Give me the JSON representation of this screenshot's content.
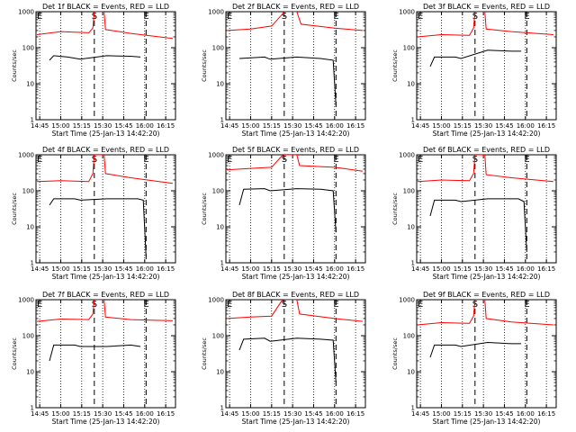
{
  "figure": {
    "x_ticks": [
      "14:45",
      "15:00",
      "15:15",
      "15:30",
      "15:45",
      "16:00",
      "16:15"
    ],
    "y_ticks": [
      "1",
      "10",
      "100",
      "1000"
    ],
    "ylabel": "Counts/sec",
    "xlabel": "Start Time (25-Jan-13 14:42:20)",
    "marker_labels": [
      "E",
      "S",
      "E"
    ],
    "colors": {
      "events": "#000000",
      "lld": "#ff0000",
      "axes": "#000000",
      "background": "#ffffff"
    }
  },
  "chart_data": [
    {
      "type": "line",
      "title": "Det 1f BLACK = Events, RED = LLD",
      "xlim": [
        "14:42:20",
        "16:22:00"
      ],
      "ylim": [
        1,
        1000
      ],
      "yscale": "log",
      "markers": [
        {
          "label": "E",
          "time": "14:42:20"
        },
        {
          "label": "S",
          "time": "15:24:00"
        },
        {
          "label": "E",
          "time": "16:01:00"
        }
      ],
      "series": [
        {
          "name": "BLACK = Events",
          "color": "black",
          "points": [
            [
              "14:52",
              45
            ],
            [
              "14:55",
              60
            ],
            [
              "15:05",
              55
            ],
            [
              "15:14",
              48
            ],
            [
              "15:33",
              60
            ],
            [
              "15:50",
              58
            ],
            [
              "15:57",
              55
            ]
          ]
        },
        {
          "name": "RED = LLD",
          "color": "red",
          "points": [
            [
              "14:43",
              230
            ],
            [
              "15:00",
              280
            ],
            [
              "15:20",
              260
            ],
            [
              "15:23",
              350
            ],
            [
              "15:24",
              1000
            ],
            [
              "15:31",
              1000
            ],
            [
              "15:32",
              320
            ],
            [
              "15:50",
              250
            ],
            [
              "16:20",
              180
            ]
          ]
        }
      ]
    },
    {
      "type": "line",
      "title": "Det 2f BLACK = Events, RED = LLD",
      "xlim": [
        "14:42:20",
        "16:22:00"
      ],
      "ylim": [
        1,
        1000
      ],
      "yscale": "log",
      "markers": [
        {
          "label": "E",
          "time": "14:42:20"
        },
        {
          "label": "S",
          "time": "15:24:00"
        },
        {
          "label": "E",
          "time": "16:01:00"
        }
      ],
      "series": [
        {
          "name": "BLACK = Events",
          "color": "black",
          "points": [
            [
              "14:52",
              50
            ],
            [
              "15:10",
              55
            ],
            [
              "15:14",
              48
            ],
            [
              "15:33",
              55
            ],
            [
              "15:50",
              50
            ],
            [
              "15:59",
              45
            ],
            [
              "16:01",
              2.5
            ]
          ]
        },
        {
          "name": "RED = LLD",
          "color": "red",
          "points": [
            [
              "14:43",
              300
            ],
            [
              "15:00",
              330
            ],
            [
              "15:15",
              400
            ],
            [
              "15:22",
              800
            ],
            [
              "15:24",
              1000
            ],
            [
              "15:33",
              1000
            ],
            [
              "15:36",
              450
            ],
            [
              "16:00",
              350
            ],
            [
              "16:20",
              300
            ]
          ]
        }
      ]
    },
    {
      "type": "line",
      "title": "Det 3f BLACK = Events, RED = LLD",
      "xlim": [
        "14:42:20",
        "16:22:00"
      ],
      "ylim": [
        1,
        1000
      ],
      "yscale": "log",
      "markers": [
        {
          "label": "E",
          "time": "14:42:20"
        },
        {
          "label": "S",
          "time": "15:24:00"
        },
        {
          "label": "E",
          "time": "16:01:00"
        }
      ],
      "series": [
        {
          "name": "BLACK = Events",
          "color": "black",
          "points": [
            [
              "14:52",
              30
            ],
            [
              "14:55",
              55
            ],
            [
              "15:10",
              55
            ],
            [
              "15:14",
              50
            ],
            [
              "15:33",
              85
            ],
            [
              "15:50",
              80
            ],
            [
              "15:57",
              80
            ]
          ]
        },
        {
          "name": "RED = LLD",
          "color": "red",
          "points": [
            [
              "14:43",
              200
            ],
            [
              "15:00",
              230
            ],
            [
              "15:20",
              220
            ],
            [
              "15:23",
              350
            ],
            [
              "15:24",
              1000
            ],
            [
              "15:31",
              1000
            ],
            [
              "15:32",
              330
            ],
            [
              "15:50",
              280
            ],
            [
              "16:20",
              230
            ]
          ]
        }
      ]
    },
    {
      "type": "line",
      "title": "Det 4f BLACK = Events, RED = LLD",
      "xlim": [
        "14:42:20",
        "16:22:00"
      ],
      "ylim": [
        1,
        1000
      ],
      "yscale": "log",
      "markers": [
        {
          "label": "E",
          "time": "14:42:20"
        },
        {
          "label": "S",
          "time": "15:24:00"
        },
        {
          "label": "E",
          "time": "16:01:00"
        }
      ],
      "series": [
        {
          "name": "BLACK = Events",
          "color": "black",
          "points": [
            [
              "14:52",
              40
            ],
            [
              "14:55",
              60
            ],
            [
              "15:10",
              60
            ],
            [
              "15:14",
              55
            ],
            [
              "15:33",
              60
            ],
            [
              "15:55",
              60
            ],
            [
              "15:59",
              55
            ],
            [
              "16:01",
              1.5
            ]
          ]
        },
        {
          "name": "RED = LLD",
          "color": "red",
          "points": [
            [
              "14:43",
              180
            ],
            [
              "15:00",
              190
            ],
            [
              "15:20",
              180
            ],
            [
              "15:23",
              300
            ],
            [
              "15:24",
              1000
            ],
            [
              "15:31",
              1000
            ],
            [
              "15:32",
              300
            ],
            [
              "15:50",
              230
            ],
            [
              "16:20",
              160
            ]
          ]
        }
      ]
    },
    {
      "type": "line",
      "title": "Det 5f BLACK = Events, RED = LLD",
      "xlim": [
        "14:42:20",
        "16:22:00"
      ],
      "ylim": [
        1,
        1000
      ],
      "yscale": "log",
      "markers": [
        {
          "label": "E",
          "time": "14:42:20"
        },
        {
          "label": "S",
          "time": "15:24:00"
        },
        {
          "label": "E",
          "time": "16:01:00"
        }
      ],
      "series": [
        {
          "name": "BLACK = Events",
          "color": "black",
          "points": [
            [
              "14:52",
              40
            ],
            [
              "14:55",
              110
            ],
            [
              "15:10",
              115
            ],
            [
              "15:14",
              100
            ],
            [
              "15:33",
              115
            ],
            [
              "15:50",
              110
            ],
            [
              "15:59",
              100
            ],
            [
              "16:01",
              7
            ]
          ]
        },
        {
          "name": "RED = LLD",
          "color": "red",
          "points": [
            [
              "14:43",
              380
            ],
            [
              "15:00",
              420
            ],
            [
              "15:15",
              450
            ],
            [
              "15:22",
              900
            ],
            [
              "15:24",
              1000
            ],
            [
              "15:33",
              1000
            ],
            [
              "15:35",
              500
            ],
            [
              "16:00",
              450
            ],
            [
              "16:20",
              350
            ]
          ]
        }
      ]
    },
    {
      "type": "line",
      "title": "Det 6f BLACK = Events, RED = LLD",
      "xlim": [
        "14:42:20",
        "16:22:00"
      ],
      "ylim": [
        1,
        1000
      ],
      "yscale": "log",
      "markers": [
        {
          "label": "E",
          "time": "14:42:20"
        },
        {
          "label": "S",
          "time": "15:24:00"
        },
        {
          "label": "E",
          "time": "16:01:00"
        }
      ],
      "series": [
        {
          "name": "BLACK = Events",
          "color": "black",
          "points": [
            [
              "14:52",
              20
            ],
            [
              "14:55",
              55
            ],
            [
              "15:10",
              55
            ],
            [
              "15:14",
              50
            ],
            [
              "15:33",
              60
            ],
            [
              "15:55",
              60
            ],
            [
              "15:59",
              50
            ],
            [
              "16:01",
              2
            ]
          ]
        },
        {
          "name": "RED = LLD",
          "color": "red",
          "points": [
            [
              "14:43",
              180
            ],
            [
              "15:00",
              200
            ],
            [
              "15:20",
              190
            ],
            [
              "15:23",
              300
            ],
            [
              "15:24",
              1000
            ],
            [
              "15:31",
              1000
            ],
            [
              "15:32",
              280
            ],
            [
              "15:50",
              230
            ],
            [
              "16:20",
              180
            ]
          ]
        }
      ]
    },
    {
      "type": "line",
      "title": "Det 7f BLACK = Events, RED = LLD",
      "xlim": [
        "14:42:20",
        "16:22:00"
      ],
      "ylim": [
        1,
        1000
      ],
      "yscale": "log",
      "markers": [
        {
          "label": "E",
          "time": "14:42:20"
        },
        {
          "label": "S",
          "time": "15:24:00"
        },
        {
          "label": "E",
          "time": "16:01:00"
        }
      ],
      "series": [
        {
          "name": "BLACK = Events",
          "color": "black",
          "points": [
            [
              "14:52",
              20
            ],
            [
              "14:55",
              55
            ],
            [
              "15:10",
              55
            ],
            [
              "15:14",
              50
            ],
            [
              "15:33",
              50
            ],
            [
              "15:50",
              55
            ],
            [
              "15:57",
              50
            ]
          ]
        },
        {
          "name": "RED = LLD",
          "color": "red",
          "points": [
            [
              "14:43",
              250
            ],
            [
              "15:00",
              290
            ],
            [
              "15:20",
              280
            ],
            [
              "15:23",
              400
            ],
            [
              "15:24",
              1000
            ],
            [
              "15:31",
              1000
            ],
            [
              "15:32",
              330
            ],
            [
              "15:50",
              280
            ],
            [
              "16:20",
              260
            ]
          ]
        }
      ]
    },
    {
      "type": "line",
      "title": "Det 8f BLACK = Events, RED = LLD",
      "xlim": [
        "14:42:20",
        "16:22:00"
      ],
      "ylim": [
        1,
        1000
      ],
      "yscale": "log",
      "markers": [
        {
          "label": "E",
          "time": "14:42:20"
        },
        {
          "label": "S",
          "time": "15:24:00"
        },
        {
          "label": "E",
          "time": "16:01:00"
        }
      ],
      "series": [
        {
          "name": "BLACK = Events",
          "color": "black",
          "points": [
            [
              "14:52",
              40
            ],
            [
              "14:55",
              80
            ],
            [
              "15:10",
              85
            ],
            [
              "15:14",
              70
            ],
            [
              "15:33",
              85
            ],
            [
              "15:50",
              80
            ],
            [
              "15:59",
              75
            ],
            [
              "16:01",
              5
            ]
          ]
        },
        {
          "name": "RED = LLD",
          "color": "red",
          "points": [
            [
              "14:43",
              300
            ],
            [
              "15:00",
              330
            ],
            [
              "15:15",
              350
            ],
            [
              "15:22",
              900
            ],
            [
              "15:24",
              1000
            ],
            [
              "15:33",
              1000
            ],
            [
              "15:35",
              400
            ],
            [
              "16:00",
              300
            ],
            [
              "16:20",
              250
            ]
          ]
        }
      ]
    },
    {
      "type": "line",
      "title": "Det 9f BLACK = Events, RED = LLD",
      "xlim": [
        "14:42:20",
        "16:22:00"
      ],
      "ylim": [
        1,
        1000
      ],
      "yscale": "log",
      "markers": [
        {
          "label": "E",
          "time": "14:42:20"
        },
        {
          "label": "S",
          "time": "15:24:00"
        },
        {
          "label": "E",
          "time": "16:01:00"
        }
      ],
      "series": [
        {
          "name": "BLACK = Events",
          "color": "black",
          "points": [
            [
              "14:52",
              25
            ],
            [
              "14:55",
              55
            ],
            [
              "15:10",
              55
            ],
            [
              "15:14",
              50
            ],
            [
              "15:33",
              65
            ],
            [
              "15:50",
              60
            ],
            [
              "15:57",
              60
            ]
          ]
        },
        {
          "name": "RED = LLD",
          "color": "red",
          "points": [
            [
              "14:43",
              200
            ],
            [
              "15:00",
              230
            ],
            [
              "15:20",
              220
            ],
            [
              "15:23",
              350
            ],
            [
              "15:24",
              1000
            ],
            [
              "15:31",
              1000
            ],
            [
              "15:32",
              300
            ],
            [
              "15:50",
              240
            ],
            [
              "16:20",
              200
            ]
          ]
        }
      ]
    }
  ]
}
